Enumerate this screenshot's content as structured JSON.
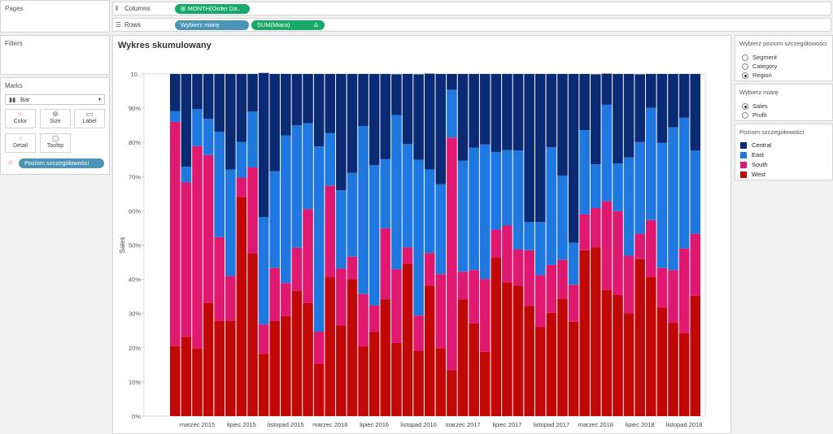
{
  "pages": {
    "title": "Pages"
  },
  "filters": {
    "title": "Filters"
  },
  "marks": {
    "title": "Marks",
    "mark_type": "Bar",
    "buttons": [
      {
        "label": "Color",
        "icon": "color-dots-icon"
      },
      {
        "label": "Size",
        "icon": "size-icon"
      },
      {
        "label": "Label",
        "icon": "label-icon"
      },
      {
        "label": "Detail",
        "icon": "detail-icon"
      },
      {
        "label": "Tooltip",
        "icon": "tooltip-icon"
      }
    ],
    "color_field": "Poziom szczegółowości"
  },
  "shelves": {
    "columns_label": "Columns",
    "columns_pill": "MONTH(Order Da..",
    "rows_label": "Rows",
    "rows_pill_1": "Wybierz miarę",
    "rows_pill_2": "SUM(Miara)",
    "rows_pill_2_delta": "Δ"
  },
  "param_level": {
    "title": "Wybierz poziom szczegółowości",
    "options": [
      "Segment",
      "Category",
      "Region"
    ],
    "selected": "Region"
  },
  "param_measure": {
    "title": "Wybierz miarę",
    "options": [
      "Sales",
      "Profit"
    ],
    "selected": "Sales"
  },
  "legend": {
    "title": "Poziom szczegółowości",
    "items": [
      {
        "label": "Central",
        "color": "#0b2a74"
      },
      {
        "label": "East",
        "color": "#1f77e0"
      },
      {
        "label": "South",
        "color": "#e0186f"
      },
      {
        "label": "West",
        "color": "#c20707"
      }
    ]
  },
  "chart_data": {
    "type": "bar",
    "title": "Wykres skumulowany",
    "ylabel": "Sales",
    "ylim": [
      0,
      100
    ],
    "yticks": [
      "0%",
      "10%",
      "20%",
      "30%",
      "40%",
      "50%",
      "60%",
      "70%",
      "80%",
      "90%",
      "10.."
    ],
    "xtick_labels": [
      "marzec 2015",
      "lipiec 2015",
      "listopad 2015",
      "marzec 2016",
      "lipiec 2016",
      "listopad 2016",
      "marzec 2017",
      "lipiec 2017",
      "listopad 2017",
      "marzec 2018",
      "lipiec 2018",
      "listopad 2018"
    ],
    "xtick_month_index": [
      2,
      6,
      10,
      14,
      18,
      22,
      26,
      30,
      34,
      38,
      42,
      46
    ],
    "months": 48,
    "stack_order": [
      "West",
      "South",
      "East",
      "Central"
    ],
    "series": [
      {
        "name": "West",
        "values": [
          20.5,
          23.2,
          19.8,
          33.1,
          27.8,
          27.8,
          64.1,
          47.5,
          18.2,
          27.8,
          29.3,
          36.6,
          33.1,
          15.2,
          40.5,
          26.5,
          40,
          20.3,
          24.6,
          34.1,
          21.4,
          44.6,
          19.1,
          38.1,
          19.9,
          13.5,
          34.1,
          27.1,
          18.8,
          46.3,
          39.1,
          38.1,
          32.2,
          26.1,
          30.2,
          34.3,
          27.6,
          48.5,
          49.3,
          36.9,
          35.4,
          30.1,
          45.9,
          40.8,
          31.7,
          27.2,
          24.3,
          35.2
        ]
      },
      {
        "name": "South",
        "values": [
          65.5,
          45.1,
          59.1,
          43.2,
          24.5,
          13.2,
          5.6,
          25.2,
          8.6,
          15.5,
          9.6,
          12.6,
          27.4,
          9.5,
          26.8,
          16.6,
          6.6,
          15.4,
          7.8,
          20.8,
          21.5,
          4.7,
          10.3,
          9.6,
          21.6,
          67.9,
          8.1,
          15.6,
          21.3,
          8.2,
          16.6,
          10.6,
          16.3,
          15.1,
          14,
          11.4,
          10.8,
          10.5,
          11.5,
          25.9,
          24.5,
          16.8,
          7.4,
          16.5,
          11.6,
          15.5,
          24.7,
          18.1
        ]
      },
      {
        "name": "East",
        "values": [
          3.1,
          4.6,
          10.8,
          10.6,
          30.8,
          31.1,
          10.4,
          16.3,
          31.4,
          28.3,
          43.1,
          35.8,
          25.1,
          54.1,
          15.4,
          22.9,
          24.5,
          49.1,
          41,
          20.2,
          45.1,
          30.2,
          45.5,
          24.4,
          26.3,
          14,
          32.5,
          35.8,
          39.3,
          22.7,
          22.1,
          28.9,
          8.2,
          15.5,
          34.4,
          24.6,
          12.3,
          24.6,
          12.8,
          28.2,
          13.9,
          28.7,
          26.8,
          32.8,
          36.6,
          41.7,
          38.2,
          24.3
        ]
      },
      {
        "name": "Central",
        "values": [
          10.9,
          27.1,
          10.3,
          13.1,
          16.9,
          27.9,
          19.9,
          11,
          42.1,
          28.4,
          18,
          15,
          14.4,
          21.2,
          17.3,
          34,
          28.9,
          15.2,
          26.6,
          24.9,
          11.9,
          20.5,
          25,
          28,
          32.2,
          4.6,
          25.3,
          21.5,
          20.6,
          22.8,
          22.2,
          22.4,
          43.3,
          43.3,
          21.4,
          29.7,
          49.3,
          16.4,
          26.3,
          9.1,
          26.2,
          24.4,
          19.8,
          9.9,
          20.1,
          15.6,
          12.8,
          22.4
        ]
      }
    ]
  }
}
